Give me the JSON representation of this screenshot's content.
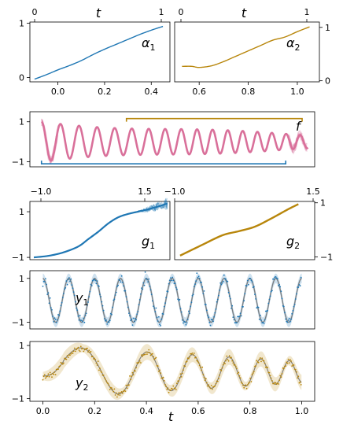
{
  "colors": {
    "blue": "#1f77b4",
    "gold": "#b8860b",
    "pink": "#d9709a",
    "gray": "#666666"
  },
  "chart_data": [
    {
      "type": "line",
      "id": "alpha1",
      "annotation": {
        "base": "α",
        "sub": "1"
      },
      "x_ticks": [
        "0.0",
        "0.2",
        "0.4"
      ],
      "x_tick_values": [
        0.0,
        0.2,
        0.4
      ],
      "top_label": "t",
      "top_ticks": [
        "0",
        "1"
      ],
      "y_ticks": [
        "0",
        "1"
      ],
      "y_tick_values": [
        0,
        1
      ],
      "xlim": [
        -0.12,
        0.48
      ],
      "ylim": [
        -0.08,
        1.02
      ],
      "series": [
        {
          "color": "blue",
          "x": [
            -0.1,
            -0.05,
            0.0,
            0.05,
            0.1,
            0.15,
            0.2,
            0.25,
            0.3,
            0.35,
            0.4,
            0.45
          ],
          "y": [
            -0.03,
            0.05,
            0.14,
            0.22,
            0.31,
            0.42,
            0.52,
            0.61,
            0.7,
            0.79,
            0.87,
            0.94
          ]
        }
      ]
    },
    {
      "type": "line",
      "id": "alpha2",
      "annotation": {
        "base": "α",
        "sub": "2"
      },
      "x_ticks": [
        "0.6",
        "0.8",
        "1.0"
      ],
      "x_tick_values": [
        0.6,
        0.8,
        1.0
      ],
      "top_label": "t",
      "top_ticks": [
        "0",
        "1"
      ],
      "y_ticks": [
        "0",
        "1"
      ],
      "y_tick_values": [
        0,
        1
      ],
      "xlim": [
        0.5,
        1.09
      ],
      "ylim": [
        -0.02,
        1.1
      ],
      "series": [
        {
          "color": "gold",
          "x": [
            0.53,
            0.57,
            0.6,
            0.65,
            0.7,
            0.75,
            0.8,
            0.85,
            0.9,
            0.95,
            1.0,
            1.05
          ],
          "y": [
            0.27,
            0.27,
            0.25,
            0.28,
            0.36,
            0.46,
            0.56,
            0.66,
            0.76,
            0.82,
            0.92,
            1.01
          ]
        }
      ]
    },
    {
      "type": "line",
      "id": "f",
      "annotation": {
        "base": "f",
        "sub": ""
      },
      "y_ticks": [
        "1",
        "−1"
      ],
      "y_tick_values": [
        1,
        -1
      ],
      "xlim": [
        -1.2,
        1.75
      ],
      "ylim": [
        -1.25,
        1.5
      ],
      "series": [
        {
          "color": "pink",
          "x_range": [
            -1.08,
            1.68
          ],
          "amplitude_range": [
            1.0,
            0.3
          ],
          "frequency_range": [
            5.0,
            7.0
          ]
        }
      ],
      "brackets": [
        {
          "color": "gold",
          "x": [
            -0.2,
            1.62
          ],
          "y": 1.16
        },
        {
          "color": "blue",
          "x": [
            -1.08,
            1.45
          ],
          "y": -1.1
        }
      ]
    },
    {
      "type": "line",
      "id": "g1",
      "annotation": {
        "base": "g",
        "sub": "1"
      },
      "top_ticks": [
        "−1.0",
        "1.5"
      ],
      "y_ticks": [
        "1",
        "−1"
      ],
      "y_tick_values": [
        1,
        -1
      ],
      "xlim": [
        -1.08,
        1.75
      ],
      "ylim": [
        -1.1,
        1.45
      ],
      "series": [
        {
          "color": "blue",
          "x": [
            -1.0,
            -0.7,
            -0.4,
            -0.1,
            0.1,
            0.3,
            0.5,
            0.7,
            0.9,
            1.1,
            1.3,
            1.5,
            1.7
          ],
          "y": [
            -1.0,
            -0.93,
            -0.78,
            -0.52,
            -0.2,
            0.12,
            0.48,
            0.75,
            0.9,
            1.0,
            1.1,
            1.22,
            1.36
          ]
        }
      ]
    },
    {
      "type": "line",
      "id": "g2",
      "annotation": {
        "base": "g",
        "sub": "2"
      },
      "top_ticks": [
        "−1.0",
        "1.5"
      ],
      "y_ticks": [
        "1",
        "−1"
      ],
      "y_tick_values": [
        1,
        -1
      ],
      "xlim": [
        -1.08,
        1.5
      ],
      "ylim": [
        -1.1,
        1.05
      ],
      "series": [
        {
          "color": "gold",
          "x": [
            -0.98,
            -0.6,
            -0.2,
            0.1,
            0.4,
            0.7,
            1.0,
            1.2
          ],
          "y": [
            -0.95,
            -0.58,
            -0.2,
            -0.05,
            0.12,
            0.42,
            0.75,
            0.95
          ]
        }
      ]
    },
    {
      "type": "scatter",
      "id": "y1",
      "annotation": {
        "base": "y",
        "sub": "1"
      },
      "y_ticks": [
        "1",
        "−1"
      ],
      "y_tick_values": [
        1,
        -1
      ],
      "xlim": [
        -0.05,
        1.05
      ],
      "ylim": [
        -1.3,
        1.35
      ],
      "x_range": [
        0.0,
        1.0
      ],
      "cycles": 10,
      "color": "blue",
      "band_color": "blue"
    },
    {
      "type": "scatter",
      "id": "y2",
      "annotation": {
        "base": "y",
        "sub": "2"
      },
      "y_ticks": [
        "1",
        "−1"
      ],
      "y_tick_values": [
        1,
        -1
      ],
      "x_ticks": [
        "0.0",
        "0.2",
        "0.4",
        "0.6",
        "0.8",
        "1.0"
      ],
      "x_tick_values": [
        0.0,
        0.2,
        0.4,
        0.6,
        0.8,
        1.0
      ],
      "xlabel": "t",
      "xlim": [
        -0.05,
        1.05
      ],
      "ylim": [
        -1.1,
        1.15
      ],
      "x_range": [
        0.0,
        1.0
      ],
      "color": "gold",
      "band_color": "gold"
    }
  ]
}
